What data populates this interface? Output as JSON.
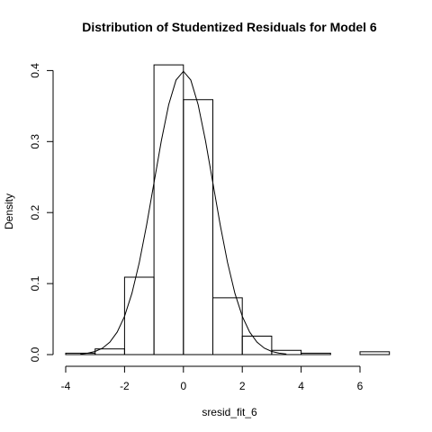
{
  "chart_data": {
    "type": "histogram",
    "title": "Distribution of Studentized Residuals for Model 6",
    "xlabel": "sresid_fit_6",
    "ylabel": "Density",
    "xlim": [
      -4,
      7
    ],
    "ylim": [
      0,
      0.42
    ],
    "x_ticks": [
      -4,
      -2,
      0,
      2,
      4,
      6
    ],
    "y_ticks": [
      0.0,
      0.1,
      0.2,
      0.3,
      0.4
    ],
    "x_tick_labels": [
      "-4",
      "-2",
      "0",
      "2",
      "4",
      "6"
    ],
    "y_tick_labels": [
      "0.0",
      "0.1",
      "0.2",
      "0.3",
      "0.4"
    ],
    "bins": [
      {
        "x0": -4,
        "x1": -3,
        "density": 0.002
      },
      {
        "x0": -3,
        "x1": -2,
        "density": 0.008
      },
      {
        "x0": -2,
        "x1": -1,
        "density": 0.109
      },
      {
        "x0": -1,
        "x1": 0,
        "density": 0.408
      },
      {
        "x0": 0,
        "x1": 1,
        "density": 0.359
      },
      {
        "x0": 1,
        "x1": 2,
        "density": 0.08
      },
      {
        "x0": 2,
        "x1": 3,
        "density": 0.026
      },
      {
        "x0": 3,
        "x1": 4,
        "density": 0.006
      },
      {
        "x0": 4,
        "x1": 5,
        "density": 0.002
      },
      {
        "x0": 5,
        "x1": 6,
        "density": 0.0
      },
      {
        "x0": 6,
        "x1": 7,
        "density": 0.004
      }
    ],
    "curve": {
      "type": "normal_density",
      "mean": 0,
      "sd": 1,
      "x_range": [
        -3.5,
        3.5
      ]
    },
    "grid": false
  }
}
